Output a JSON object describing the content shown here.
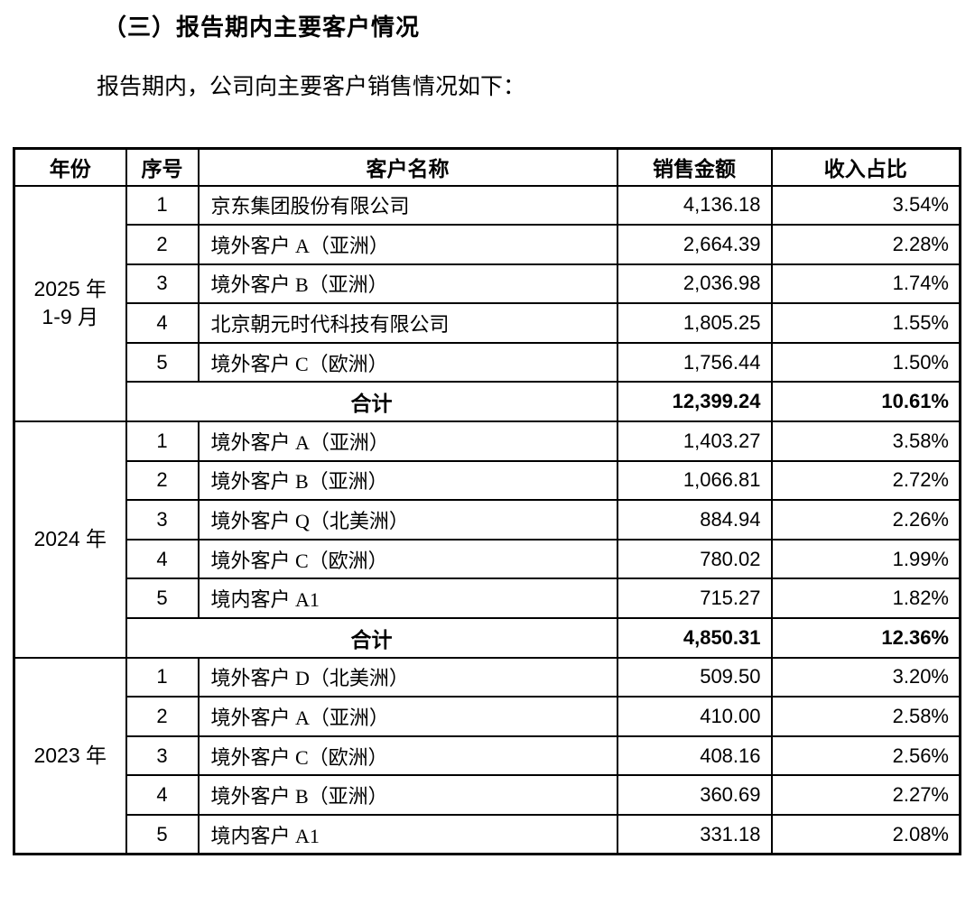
{
  "page": {
    "title": "（三）报告期内主要客户情况",
    "intro": "报告期内，公司向主要客户销售情况如下："
  },
  "table": {
    "headers": {
      "year": "年份",
      "index": "序号",
      "customer": "客户名称",
      "amount": "销售金额",
      "ratio": "收入占比"
    },
    "total_label": "合计",
    "groups": [
      {
        "year_lines": [
          "2025 年",
          "1-9 月"
        ],
        "rows": [
          {
            "index": "1",
            "customer": "京东集团股份有限公司",
            "amount": "4,136.18",
            "ratio": "3.54%"
          },
          {
            "index": "2",
            "customer": "境外客户 A（亚洲）",
            "amount": "2,664.39",
            "ratio": "2.28%"
          },
          {
            "index": "3",
            "customer": "境外客户 B（亚洲）",
            "amount": "2,036.98",
            "ratio": "1.74%"
          },
          {
            "index": "4",
            "customer": "北京朝元时代科技有限公司",
            "amount": "1,805.25",
            "ratio": "1.55%"
          },
          {
            "index": "5",
            "customer": "境外客户 C（欧洲）",
            "amount": "1,756.44",
            "ratio": "1.50%"
          }
        ],
        "total": {
          "amount": "12,399.24",
          "ratio": "10.61%"
        }
      },
      {
        "year_lines": [
          "2024 年"
        ],
        "rows": [
          {
            "index": "1",
            "customer": "境外客户 A（亚洲）",
            "amount": "1,403.27",
            "ratio": "3.58%"
          },
          {
            "index": "2",
            "customer": "境外客户 B（亚洲）",
            "amount": "1,066.81",
            "ratio": "2.72%"
          },
          {
            "index": "3",
            "customer": "境外客户 Q（北美洲）",
            "amount": "884.94",
            "ratio": "2.26%"
          },
          {
            "index": "4",
            "customer": "境外客户 C（欧洲）",
            "amount": "780.02",
            "ratio": "1.99%"
          },
          {
            "index": "5",
            "customer": "境内客户 A1",
            "amount": "715.27",
            "ratio": "1.82%"
          }
        ],
        "total": {
          "amount": "4,850.31",
          "ratio": "12.36%"
        }
      },
      {
        "year_lines": [
          "2023 年"
        ],
        "rows": [
          {
            "index": "1",
            "customer": "境外客户 D（北美洲）",
            "amount": "509.50",
            "ratio": "3.20%"
          },
          {
            "index": "2",
            "customer": "境外客户 A（亚洲）",
            "amount": "410.00",
            "ratio": "2.58%"
          },
          {
            "index": "3",
            "customer": "境外客户 C（欧洲）",
            "amount": "408.16",
            "ratio": "2.56%"
          },
          {
            "index": "4",
            "customer": "境外客户 B（亚洲）",
            "amount": "360.69",
            "ratio": "2.27%"
          },
          {
            "index": "5",
            "customer": "境内客户 A1",
            "amount": "331.18",
            "ratio": "2.08%"
          }
        ],
        "total": null
      }
    ]
  }
}
